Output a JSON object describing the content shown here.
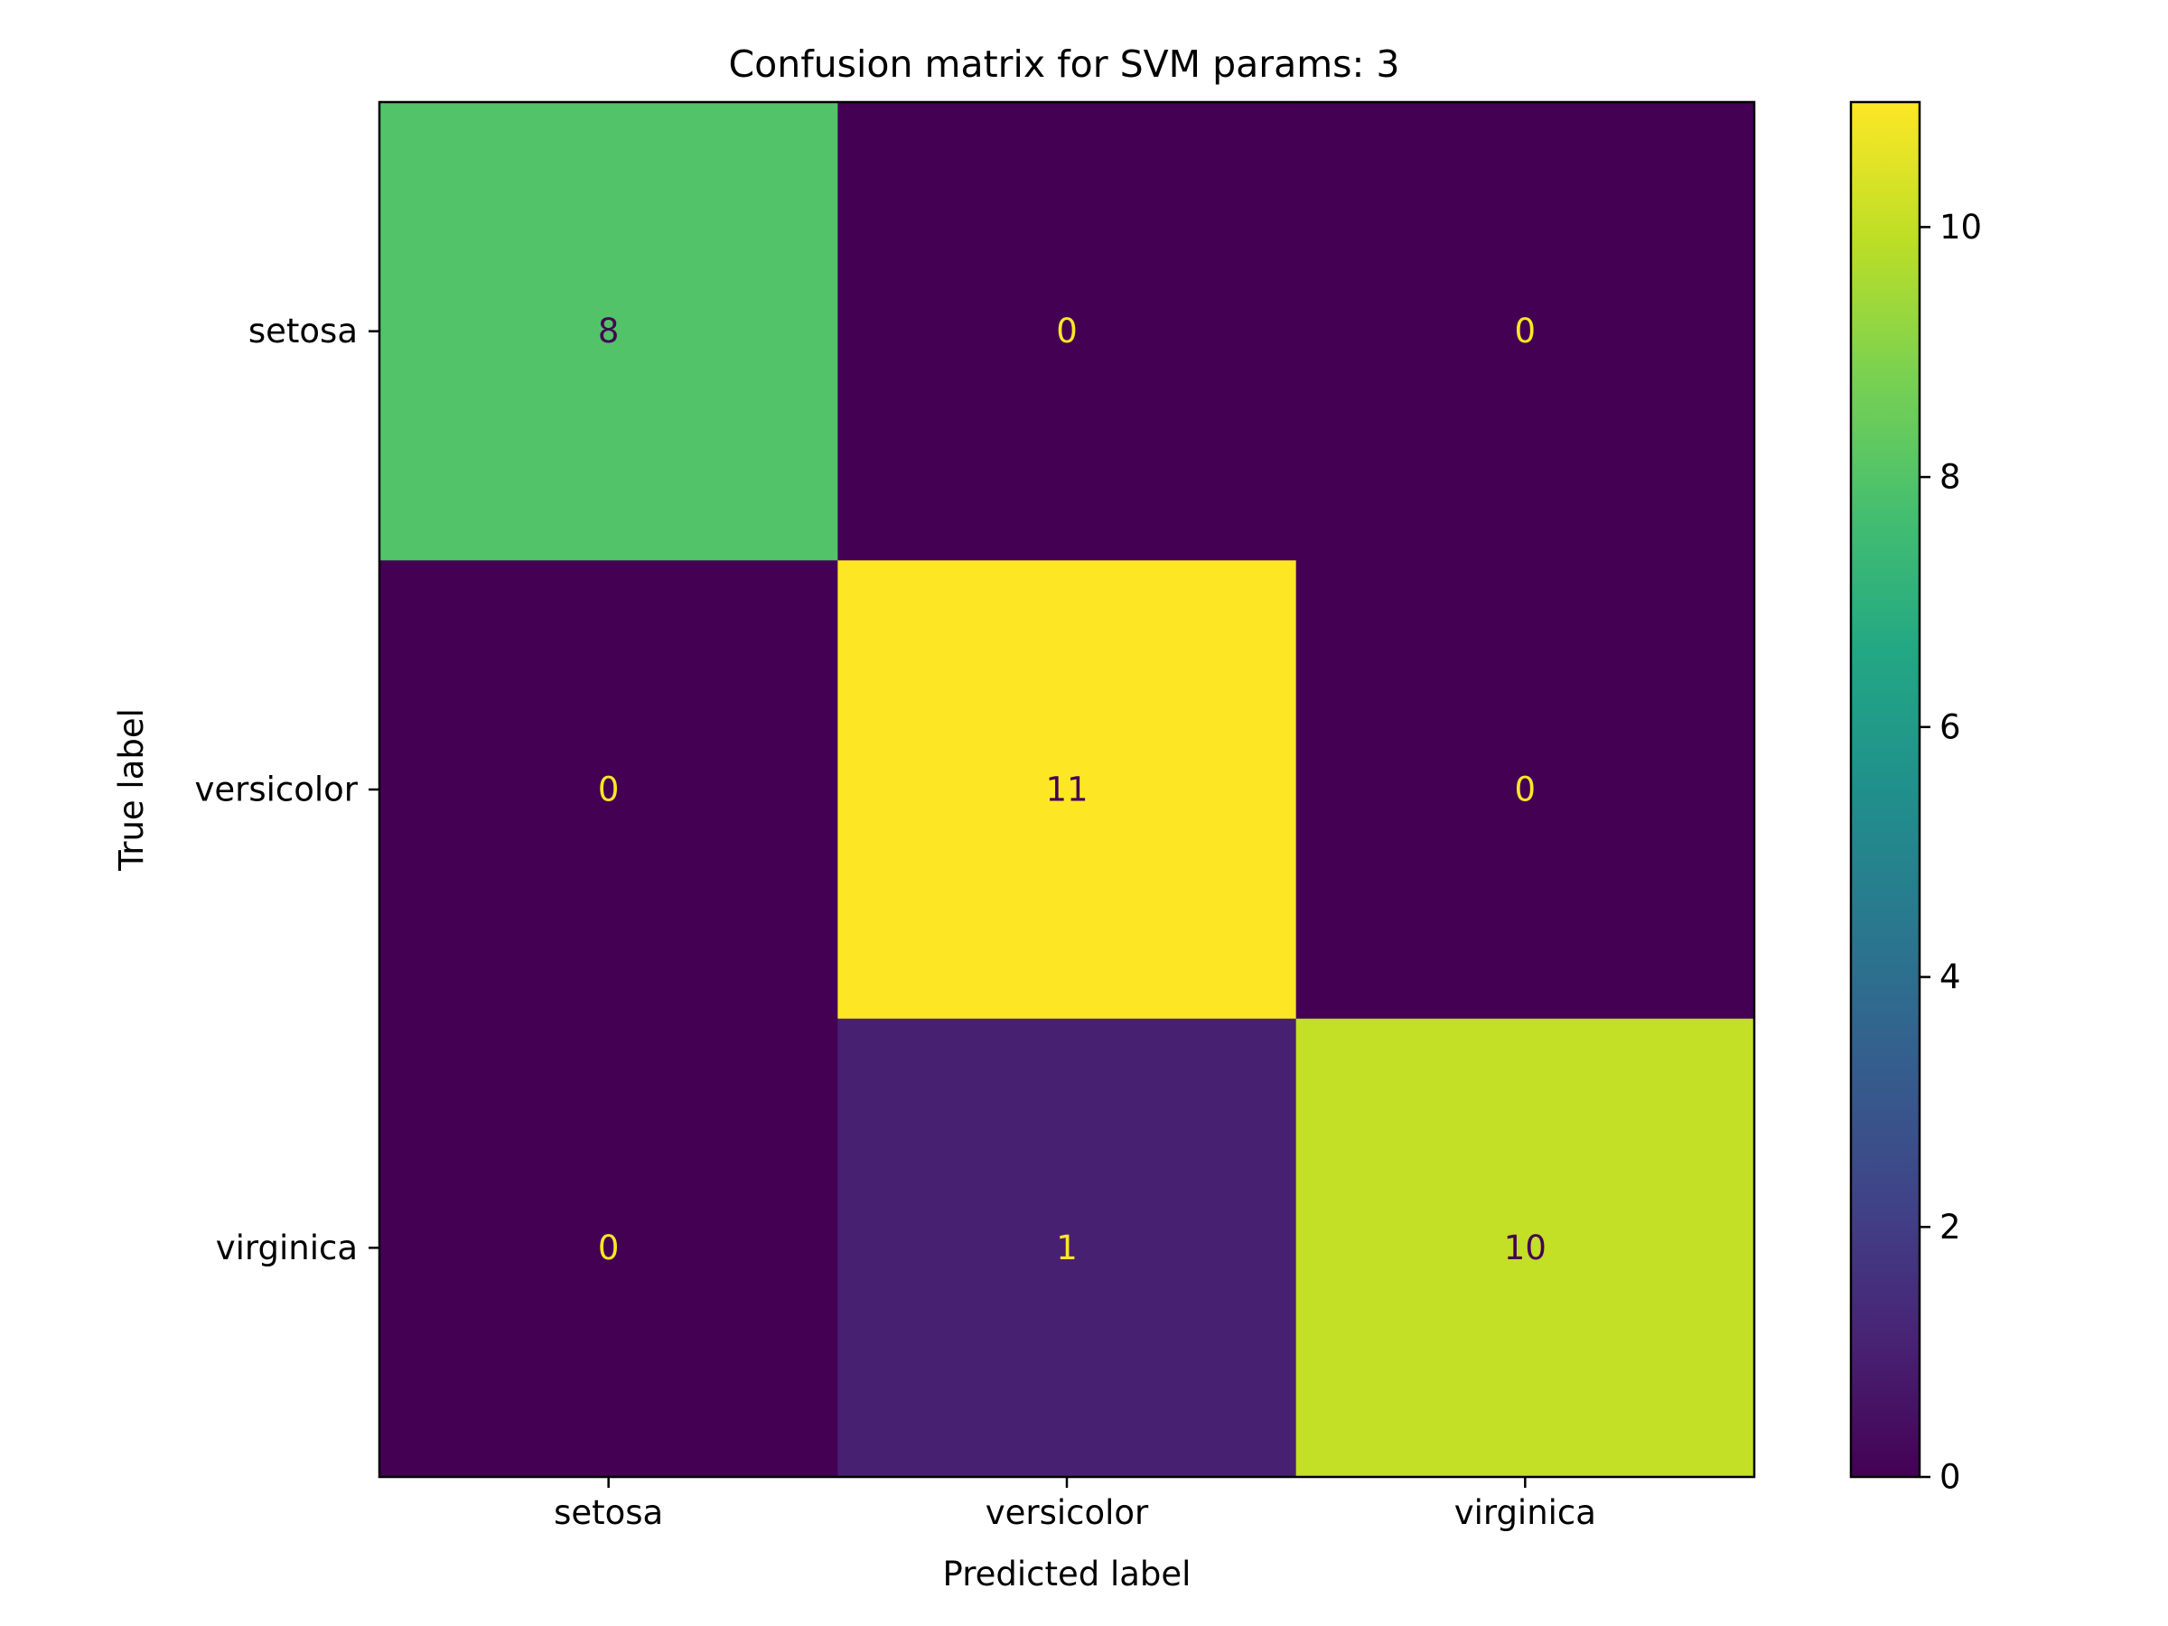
{
  "chart_data": {
    "type": "heatmap",
    "title": "Confusion matrix for SVM params: 3",
    "xlabel": "Predicted label",
    "ylabel": "True label",
    "x_categories": [
      "setosa",
      "versicolor",
      "virginica"
    ],
    "y_categories": [
      "setosa",
      "versicolor",
      "virginica"
    ],
    "values": [
      [
        8,
        0,
        0
      ],
      [
        0,
        11,
        0
      ],
      [
        0,
        1,
        10
      ]
    ],
    "colorbar": {
      "colormap": "viridis",
      "range": [
        0,
        11
      ],
      "ticks": [
        0,
        2,
        4,
        6,
        8,
        10
      ]
    },
    "grid": false
  }
}
